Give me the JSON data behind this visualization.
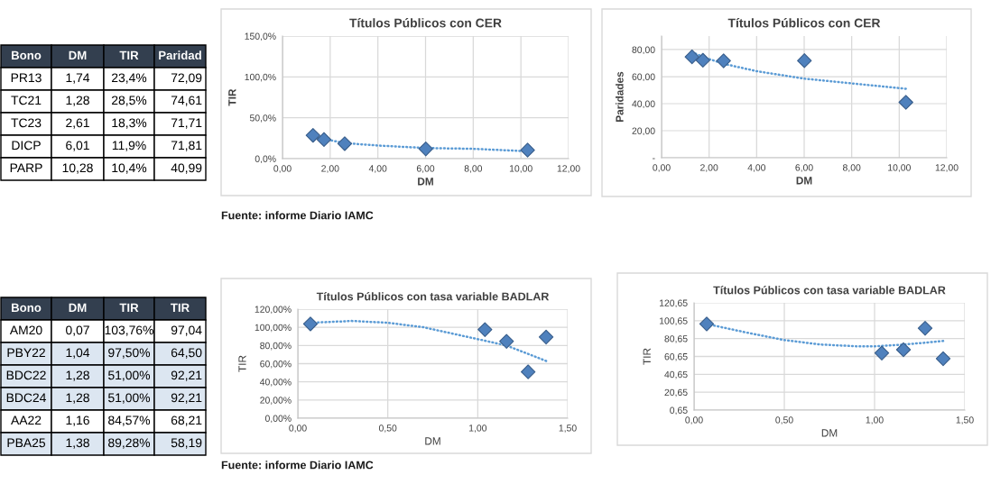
{
  "chart_data": [
    {
      "type": "other",
      "annotations": [
        "Bono",
        "DM",
        "TIR",
        "Paridad",
        "PR13",
        "1,74",
        "23,4%",
        "72,09",
        "TC21",
        "1,28",
        "28,5%",
        "74,61",
        "TC23",
        "2,61",
        "18,3%",
        "71,71",
        "DICP",
        "6,01",
        "11,9%",
        "71,81",
        "PARP",
        "10,28",
        "10,4%",
        "40,99"
      ]
    },
    {
      "type": "scatter",
      "title": "Títulos Públicos con CER",
      "xlabel": "DM",
      "ylabel": "TIR",
      "marker": "diamond",
      "grid": true,
      "xlim": [
        0,
        12
      ],
      "xticks": [
        {
          "value": 0,
          "label": "0,00"
        },
        {
          "value": 2,
          "label": "2,00"
        },
        {
          "value": 4,
          "label": "4,00"
        },
        {
          "value": 6,
          "label": "6,00"
        },
        {
          "value": 8,
          "label": "8,00"
        },
        {
          "value": 10,
          "label": "10,00"
        },
        {
          "value": 12,
          "label": "12,00"
        }
      ],
      "ylim": [
        0,
        150
      ],
      "yticks": [
        {
          "value": 0,
          "label": "0,0%"
        },
        {
          "value": 50,
          "label": "50,0%"
        },
        {
          "value": 100,
          "label": "100,0%"
        },
        {
          "value": 150,
          "label": "150,0%"
        }
      ],
      "series": [
        {
          "type": "scatter",
          "color": "#4f81bd",
          "x": [
            1.74,
            1.28,
            2.61,
            6.01,
            10.28
          ],
          "values": [
            23.4,
            28.5,
            18.3,
            11.9,
            10.4
          ]
        },
        {
          "type": "line",
          "color": "#5b9bd5",
          "line_style": "dotted",
          "marker": "none",
          "x": [
            1.28,
            1.74,
            2.61,
            4,
            6,
            8,
            10.28
          ],
          "values": [
            27,
            24,
            19,
            16,
            13,
            12,
            9
          ]
        }
      ],
      "annotations": [
        "Fuente: informe Diario IAMC"
      ]
    },
    {
      "type": "scatter",
      "title": "Títulos Públicos con CER",
      "xlabel": "DM",
      "ylabel": "Paridades",
      "marker": "diamond",
      "grid": true,
      "xlim": [
        0,
        12
      ],
      "xticks": [
        {
          "value": 0,
          "label": "0,00"
        },
        {
          "value": 2,
          "label": "2,00"
        },
        {
          "value": 4,
          "label": "4,00"
        },
        {
          "value": 6,
          "label": "6,00"
        },
        {
          "value": 8,
          "label": "8,00"
        },
        {
          "value": 10,
          "label": "10,00"
        },
        {
          "value": 12,
          "label": "12,00"
        }
      ],
      "ylim": [
        0,
        90
      ],
      "yticks": [
        {
          "value": 0,
          "label": "-"
        },
        {
          "value": 20,
          "label": "20,00"
        },
        {
          "value": 40,
          "label": "40,00"
        },
        {
          "value": 60,
          "label": "60,00"
        },
        {
          "value": 80,
          "label": "80,00"
        }
      ],
      "series": [
        {
          "type": "scatter",
          "color": "#4f81bd",
          "x": [
            1.74,
            1.28,
            2.61,
            6.01,
            10.28
          ],
          "values": [
            72.09,
            74.61,
            71.71,
            71.81,
            40.99
          ]
        },
        {
          "type": "line",
          "color": "#5b9bd5",
          "line_style": "dotted",
          "marker": "none",
          "x": [
            1.28,
            2,
            2.61,
            4,
            6,
            8,
            10.28
          ],
          "values": [
            78,
            73,
            69.5,
            64,
            58.5,
            55,
            51
          ]
        }
      ]
    },
    {
      "type": "other",
      "annotations": [
        "Bono",
        "DM",
        "TIR",
        "TIR",
        "AM20",
        "0,07",
        "103,76%",
        "97,04",
        "PBY22",
        "1,04",
        "97,50%",
        "64,50",
        "BDC22",
        "1,28",
        "51,00%",
        "92,21",
        "BDC24",
        "1,28",
        "51,00%",
        "92,21",
        "AA22",
        "1,16",
        "84,57%",
        "68,21",
        "PBA25",
        "1,38",
        "89,28%",
        "58,19"
      ]
    },
    {
      "type": "scatter",
      "title": "Títulos Públicos con tasa variable BADLAR",
      "xlabel": "DM",
      "ylabel": "TIR",
      "marker": "diamond",
      "grid": true,
      "xlim": [
        0,
        1.5
      ],
      "xticks": [
        {
          "value": 0,
          "label": "0,00"
        },
        {
          "value": 0.5,
          "label": "0,50"
        },
        {
          "value": 1,
          "label": "1,00"
        },
        {
          "value": 1.5,
          "label": "1,50"
        }
      ],
      "ylim": [
        0,
        120
      ],
      "yticks": [
        {
          "value": 0,
          "label": "0,00%"
        },
        {
          "value": 20,
          "label": "20,00%"
        },
        {
          "value": 40,
          "label": "40,00%"
        },
        {
          "value": 60,
          "label": "60,00%"
        },
        {
          "value": 80,
          "label": "80,00%"
        },
        {
          "value": 100,
          "label": "100,00%"
        },
        {
          "value": 120,
          "label": "120,00%"
        }
      ],
      "series": [
        {
          "type": "scatter",
          "color": "#4f81bd",
          "x": [
            0.07,
            1.04,
            1.28,
            1.16,
            1.38
          ],
          "values": [
            103.76,
            97.5,
            51.0,
            84.57,
            89.28
          ]
        },
        {
          "type": "line",
          "color": "#5b9bd5",
          "line_style": "dotted",
          "marker": "none",
          "x": [
            0.07,
            0.3,
            0.5,
            0.7,
            1.0,
            1.16,
            1.38
          ],
          "values": [
            105,
            107,
            105,
            100,
            87,
            80,
            63
          ]
        }
      ],
      "annotations": [
        "Fuente: informe Diario IAMC"
      ]
    },
    {
      "type": "scatter",
      "title": "Títulos Públicos con tasa variable BADLAR",
      "xlabel": "DM",
      "ylabel": "TIR",
      "marker": "diamond",
      "grid": true,
      "xlim": [
        0,
        1.5
      ],
      "xticks": [
        {
          "value": 0,
          "label": "0,00"
        },
        {
          "value": 0.5,
          "label": "0,50"
        },
        {
          "value": 1,
          "label": "1,00"
        },
        {
          "value": 1.5,
          "label": "1,50"
        }
      ],
      "ylim": [
        0.65,
        120.65
      ],
      "yticks": [
        {
          "value": 0.65,
          "label": "0,65"
        },
        {
          "value": 20.65,
          "label": "20,65"
        },
        {
          "value": 40.65,
          "label": "40,65"
        },
        {
          "value": 60.65,
          "label": "60,65"
        },
        {
          "value": 80.65,
          "label": "80,65"
        },
        {
          "value": 100.65,
          "label": "100,65"
        },
        {
          "value": 120.65,
          "label": "120,65"
        }
      ],
      "series": [
        {
          "type": "scatter",
          "color": "#4f81bd",
          "x": [
            0.07,
            1.04,
            1.28,
            1.16,
            1.38
          ],
          "values": [
            97.04,
            64.5,
            92.21,
            68.21,
            58.19
          ]
        },
        {
          "type": "line",
          "color": "#5b9bd5",
          "line_style": "dotted",
          "marker": "none",
          "x": [
            0.07,
            0.3,
            0.5,
            0.7,
            0.9,
            1.0,
            1.16,
            1.28,
            1.38
          ],
          "values": [
            97,
            87,
            79,
            74,
            72,
            72,
            74,
            76,
            78
          ]
        }
      ]
    }
  ]
}
